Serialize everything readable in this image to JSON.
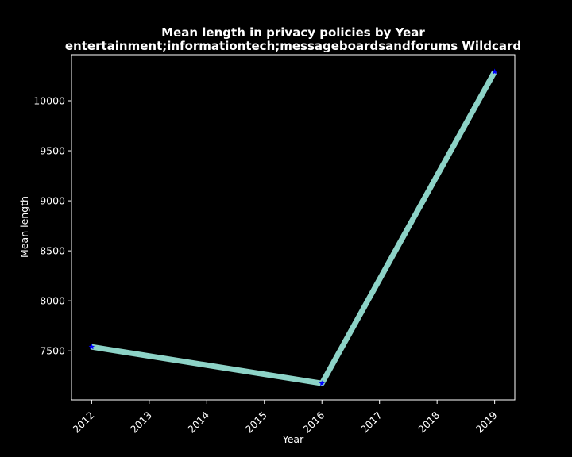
{
  "chart_data": {
    "type": "line",
    "title_line1": "Mean length in privacy policies by Year",
    "title_line2": "entertainment;informationtech;messageboardsandforums Wildcard",
    "xlabel": "Year",
    "ylabel": "Mean length",
    "x_ticks": [
      "2012",
      "2013",
      "2014",
      "2015",
      "2016",
      "2017",
      "2018",
      "2019"
    ],
    "y_ticks": [
      "7500",
      "8000",
      "8500",
      "9000",
      "9500",
      "10000"
    ],
    "xlim": [
      2011.65,
      2019.35
    ],
    "ylim": [
      7010,
      10460
    ],
    "series": [
      {
        "x": [
          2012,
          2016,
          2019
        ],
        "y": [
          7540,
          7175,
          10290
        ]
      }
    ],
    "line_color": "#8dd3c7",
    "marker_color": "#0000ff",
    "background": "#000000",
    "axis_color": "#ffffff",
    "grid": false
  }
}
